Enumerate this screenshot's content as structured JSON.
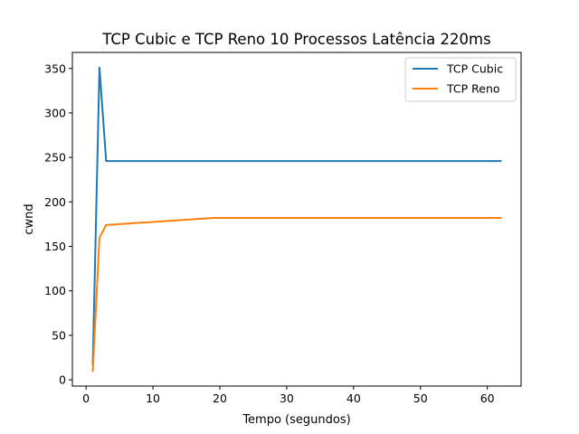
{
  "chart_data": {
    "type": "line",
    "title": "TCP Cubic e TCP Reno 10 Processos Latência 220ms",
    "xlabel": "Tempo (segundos)",
    "ylabel": "cwnd",
    "xlim": [
      -2.05,
      65.05
    ],
    "ylim": [
      -7.05,
      368.05
    ],
    "xticks": [
      0,
      10,
      20,
      30,
      40,
      50,
      60
    ],
    "yticks": [
      0,
      50,
      100,
      150,
      200,
      250,
      300,
      350
    ],
    "grid": false,
    "legend_position": "top-right",
    "series": [
      {
        "name": "TCP Cubic",
        "color": "#1f77b4",
        "x": [
          1,
          2,
          3,
          4,
          5,
          6,
          7,
          8,
          9,
          10,
          11,
          12,
          13,
          14,
          15,
          16,
          17,
          18,
          19,
          20,
          21,
          22,
          23,
          24,
          25,
          26,
          27,
          28,
          29,
          30,
          31,
          32,
          33,
          34,
          35,
          36,
          37,
          38,
          39,
          40,
          41,
          42,
          43,
          44,
          45,
          46,
          47,
          48,
          49,
          50,
          51,
          52,
          53,
          54,
          55,
          56,
          57,
          58,
          59,
          60,
          61,
          62
        ],
        "y": [
          18,
          351,
          246,
          246,
          246,
          246,
          246,
          246,
          246,
          246,
          246,
          246,
          246,
          246,
          246,
          246,
          246,
          246,
          246,
          246,
          246,
          246,
          246,
          246,
          246,
          246,
          246,
          246,
          246,
          246,
          246,
          246,
          246,
          246,
          246,
          246,
          246,
          246,
          246,
          246,
          246,
          246,
          246,
          246,
          246,
          246,
          246,
          246,
          246,
          246,
          246,
          246,
          246,
          246,
          246,
          246,
          246,
          246,
          246,
          246,
          246,
          246
        ]
      },
      {
        "name": "TCP Reno",
        "color": "#ff7f0e",
        "x": [
          1,
          2,
          3,
          4,
          5,
          6,
          7,
          8,
          9,
          10,
          11,
          12,
          13,
          14,
          15,
          16,
          17,
          18,
          19,
          20,
          21,
          22,
          23,
          24,
          25,
          26,
          27,
          28,
          29,
          30,
          31,
          32,
          33,
          34,
          35,
          36,
          37,
          38,
          39,
          40,
          41,
          42,
          43,
          44,
          45,
          46,
          47,
          48,
          49,
          50,
          51,
          52,
          53,
          54,
          55,
          56,
          57,
          58,
          59,
          60,
          61,
          62
        ],
        "y": [
          10,
          160,
          174,
          174.5,
          175,
          175.5,
          176,
          176.5,
          177,
          177.5,
          178,
          178.5,
          179,
          179.5,
          180,
          180.5,
          181,
          181.5,
          182,
          182,
          182,
          182,
          182,
          182,
          182,
          182,
          182,
          182,
          182,
          182,
          182,
          182,
          182,
          182,
          182,
          182,
          182,
          182,
          182,
          182,
          182,
          182,
          182,
          182,
          182,
          182,
          182,
          182,
          182,
          182,
          182,
          182,
          182,
          182,
          182,
          182,
          182,
          182,
          182,
          182,
          182,
          182
        ]
      }
    ]
  }
}
